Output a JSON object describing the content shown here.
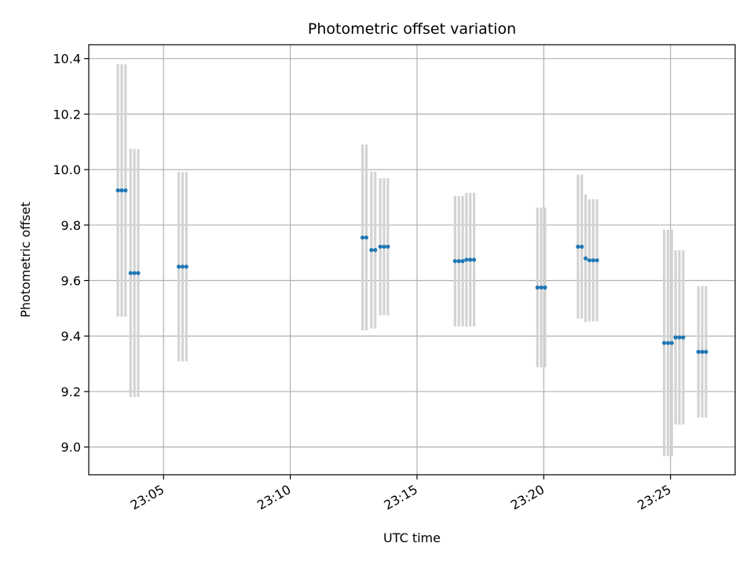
{
  "chart_data": {
    "type": "scatter",
    "title": "Photometric offset variation",
    "xlabel": "UTC time",
    "ylabel": "Photometric offset",
    "grid": true,
    "x_ticks": [
      "23:05",
      "23:10",
      "23:15",
      "23:20",
      "23:25"
    ],
    "x_tick_minutes": [
      5,
      10,
      15,
      20,
      25
    ],
    "y_ticks": [
      "9.0",
      "9.2",
      "9.4",
      "9.6",
      "9.8",
      "10.0",
      "10.2",
      "10.4"
    ],
    "y_tick_values": [
      9.0,
      9.2,
      9.4,
      9.6,
      9.8,
      10.0,
      10.2,
      10.4
    ],
    "xlim_minutes": [
      2.05,
      27.55
    ],
    "ylim": [
      8.9,
      10.45
    ],
    "point_color": "#1f77b4",
    "errorbar_color": "#d3d3d3",
    "points": [
      {
        "t": 3.2,
        "y": 9.925,
        "err": 0.455
      },
      {
        "t": 3.35,
        "y": 9.925,
        "err": 0.455
      },
      {
        "t": 3.5,
        "y": 9.925,
        "err": 0.455
      },
      {
        "t": 3.7,
        "y": 9.627,
        "err": 0.447
      },
      {
        "t": 3.85,
        "y": 9.627,
        "err": 0.447
      },
      {
        "t": 4.0,
        "y": 9.627,
        "err": 0.447
      },
      {
        "t": 5.6,
        "y": 9.65,
        "err": 0.341
      },
      {
        "t": 5.75,
        "y": 9.65,
        "err": 0.341
      },
      {
        "t": 5.9,
        "y": 9.65,
        "err": 0.341
      },
      {
        "t": 12.85,
        "y": 9.755,
        "err": 0.335
      },
      {
        "t": 13.0,
        "y": 9.755,
        "err": 0.335
      },
      {
        "t": 13.2,
        "y": 9.71,
        "err": 0.283
      },
      {
        "t": 13.35,
        "y": 9.71,
        "err": 0.283
      },
      {
        "t": 13.55,
        "y": 9.722,
        "err": 0.247
      },
      {
        "t": 13.7,
        "y": 9.722,
        "err": 0.247
      },
      {
        "t": 13.85,
        "y": 9.722,
        "err": 0.247
      },
      {
        "t": 16.5,
        "y": 9.67,
        "err": 0.235
      },
      {
        "t": 16.65,
        "y": 9.67,
        "err": 0.235
      },
      {
        "t": 16.8,
        "y": 9.67,
        "err": 0.235
      },
      {
        "t": 16.95,
        "y": 9.675,
        "err": 0.241
      },
      {
        "t": 17.1,
        "y": 9.675,
        "err": 0.241
      },
      {
        "t": 17.25,
        "y": 9.675,
        "err": 0.241
      },
      {
        "t": 19.75,
        "y": 9.575,
        "err": 0.288
      },
      {
        "t": 19.9,
        "y": 9.575,
        "err": 0.288
      },
      {
        "t": 20.05,
        "y": 9.575,
        "err": 0.288
      },
      {
        "t": 21.35,
        "y": 9.722,
        "err": 0.26
      },
      {
        "t": 21.5,
        "y": 9.722,
        "err": 0.26
      },
      {
        "t": 21.65,
        "y": 9.68,
        "err": 0.23
      },
      {
        "t": 21.8,
        "y": 9.673,
        "err": 0.22
      },
      {
        "t": 21.95,
        "y": 9.673,
        "err": 0.22
      },
      {
        "t": 22.1,
        "y": 9.673,
        "err": 0.22
      },
      {
        "t": 24.75,
        "y": 9.375,
        "err": 0.408
      },
      {
        "t": 24.9,
        "y": 9.375,
        "err": 0.408
      },
      {
        "t": 25.05,
        "y": 9.375,
        "err": 0.408
      },
      {
        "t": 25.2,
        "y": 9.395,
        "err": 0.314
      },
      {
        "t": 25.35,
        "y": 9.395,
        "err": 0.314
      },
      {
        "t": 25.5,
        "y": 9.395,
        "err": 0.314
      },
      {
        "t": 26.1,
        "y": 9.343,
        "err": 0.237
      },
      {
        "t": 26.25,
        "y": 9.343,
        "err": 0.237
      },
      {
        "t": 26.4,
        "y": 9.343,
        "err": 0.237
      }
    ]
  }
}
